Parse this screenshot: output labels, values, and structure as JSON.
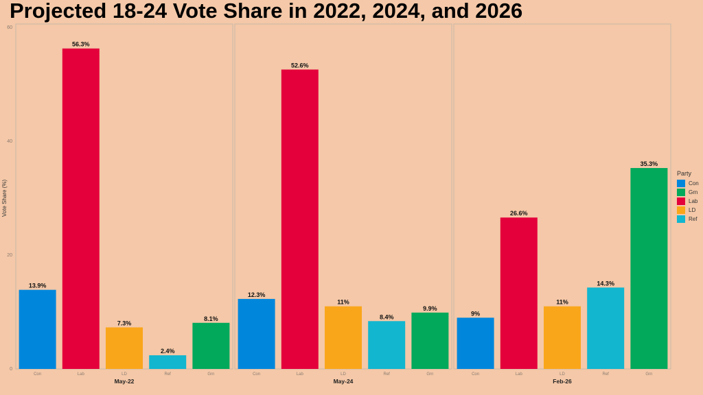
{
  "chart_data": {
    "type": "bar",
    "title": "Projected 18-24 Vote Share in 2022, 2024, and 2026",
    "ylabel": "Vote Share (%)",
    "ylim": [
      0,
      60
    ],
    "yticks": [
      "0",
      "20",
      "40",
      "60"
    ],
    "grid": false,
    "legend": {
      "title": "Party",
      "position": "right",
      "entries": [
        "Con",
        "Grn",
        "Lab",
        "LD",
        "Ref"
      ]
    },
    "colors": {
      "Con": "#0087DC",
      "Grn": "#02A95B",
      "Lab": "#E4003B",
      "LD": "#FAA61A",
      "Ref": "#12B6CF"
    },
    "facets": [
      {
        "label": "May-22",
        "categories": [
          "Con",
          "Lab",
          "LD",
          "Ref",
          "Grn"
        ],
        "values": [
          13.9,
          56.3,
          7.3,
          2.4,
          8.1
        ],
        "data_labels": [
          "13.9%",
          "56.3%",
          "7.3%",
          "2.4%",
          "8.1%"
        ]
      },
      {
        "label": "May-24",
        "categories": [
          "Con",
          "Lab",
          "LD",
          "Ref",
          "Grn"
        ],
        "values": [
          12.3,
          52.6,
          11,
          8.4,
          9.9
        ],
        "data_labels": [
          "12.3%",
          "52.6%",
          "11%",
          "8.4%",
          "9.9%"
        ]
      },
      {
        "label": "Feb-26",
        "categories": [
          "Con",
          "Lab",
          "LD",
          "Ref",
          "Grn"
        ],
        "values": [
          9,
          26.6,
          11,
          14.3,
          35.3
        ],
        "data_labels": [
          "9%",
          "26.6%",
          "11%",
          "14.3%",
          "35.3%"
        ]
      }
    ]
  }
}
